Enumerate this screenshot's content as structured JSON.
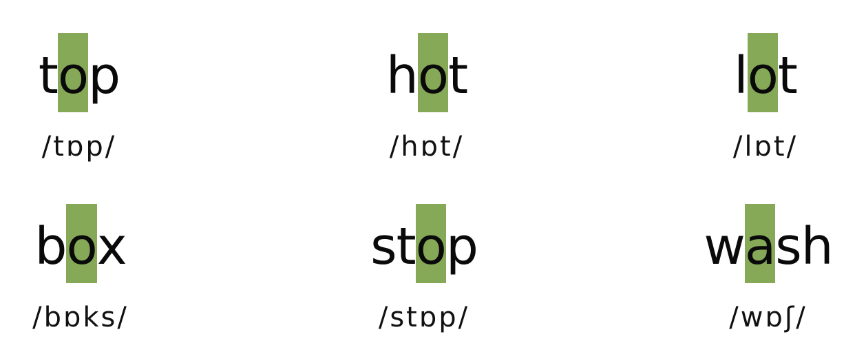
{
  "colors": {
    "highlight": "#86a957",
    "text": "#0a0a0a",
    "background": "#ffffff"
  },
  "words": [
    {
      "pre": "t",
      "vowel": "o",
      "post": "p",
      "ipa": "/tɒp/"
    },
    {
      "pre": "h",
      "vowel": "o",
      "post": "t",
      "ipa": "/hɒt/"
    },
    {
      "pre": "l",
      "vowel": "o",
      "post": "t",
      "ipa": "/lɒt/"
    },
    {
      "pre": "b",
      "vowel": "o",
      "post": "x",
      "ipa": "/bɒks/"
    },
    {
      "pre": "st",
      "vowel": "o",
      "post": "p",
      "ipa": "/stɒp/"
    },
    {
      "pre": "w",
      "vowel": "a",
      "post": "sh",
      "ipa": "/wɒʃ/"
    }
  ]
}
